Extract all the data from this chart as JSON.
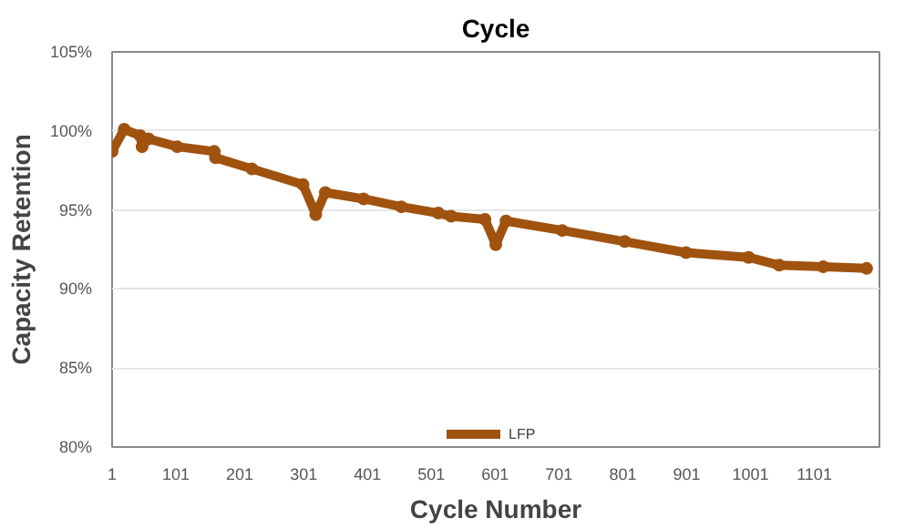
{
  "chart_data": {
    "type": "line",
    "title": "Cycle",
    "xlabel": "Cycle Number",
    "ylabel": "Capacity Retention",
    "xlim": [
      1,
      1203
    ],
    "xticks": [
      1,
      101,
      201,
      301,
      401,
      501,
      601,
      701,
      801,
      901,
      1001,
      1101
    ],
    "ylim": [
      80,
      105
    ],
    "yticks": [
      {
        "value": 80,
        "label": "80%"
      },
      {
        "value": 85,
        "label": "85%"
      },
      {
        "value": 90,
        "label": "90%"
      },
      {
        "value": 95,
        "label": "95%"
      },
      {
        "value": 100,
        "label": "100%"
      },
      {
        "value": 105,
        "label": "105%"
      }
    ],
    "grid": "y",
    "legend": "bottom",
    "marker": "circle",
    "series": [
      {
        "name": "LFP",
        "color": "#a0520f",
        "x": [
          1,
          20,
          45,
          48,
          58,
          103,
          161,
          163,
          220,
          300,
          320,
          335,
          395,
          454,
          512,
          532,
          585,
          602,
          618,
          706,
          804,
          900,
          998,
          1046,
          1115,
          1183
        ],
        "values": [
          98.7,
          100.1,
          99.7,
          99.0,
          99.5,
          99.0,
          98.7,
          98.3,
          97.6,
          96.6,
          94.7,
          96.1,
          95.7,
          95.2,
          94.8,
          94.6,
          94.4,
          92.8,
          94.3,
          93.7,
          93.0,
          92.3,
          92.0,
          91.5,
          91.4,
          91.3
        ]
      }
    ]
  }
}
